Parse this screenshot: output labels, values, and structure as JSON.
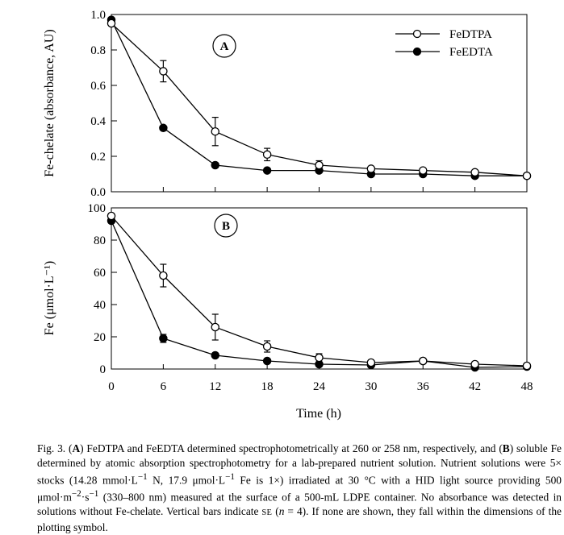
{
  "chart_data": [
    {
      "type": "line",
      "panel": "A",
      "ylabel": "Fe-chelate (absorbance, AU)",
      "xlabel": "",
      "ylim": [
        0.0,
        1.0
      ],
      "yticks": [
        0.0,
        0.2,
        0.4,
        0.6,
        0.8,
        1.0
      ],
      "ytick_labels": [
        "0.0",
        "0.2",
        "0.4",
        "0.6",
        "0.8",
        "1.0"
      ],
      "xlim": [
        0,
        48
      ],
      "x": [
        0,
        6,
        12,
        18,
        24,
        30,
        36,
        42,
        48
      ],
      "legend": {
        "position": "top-right",
        "entries": [
          "FeDTPA",
          "FeEDTA"
        ]
      },
      "series": [
        {
          "name": "FeDTPA",
          "marker": "open-circle",
          "values": [
            0.95,
            0.68,
            0.34,
            0.21,
            0.15,
            0.13,
            0.12,
            0.11,
            0.09
          ],
          "errors": [
            0.0,
            0.06,
            0.08,
            0.035,
            0.025,
            0.0,
            0.0,
            0.0,
            0.0
          ]
        },
        {
          "name": "FeEDTA",
          "marker": "filled-circle",
          "values": [
            0.97,
            0.36,
            0.15,
            0.12,
            0.12,
            0.1,
            0.1,
            0.09,
            0.09
          ],
          "errors": [
            0,
            0,
            0,
            0,
            0,
            0,
            0,
            0,
            0
          ]
        }
      ]
    },
    {
      "type": "line",
      "panel": "B",
      "ylabel": "Fe (μmol·L⁻¹)",
      "xlabel": "Time (h)",
      "ylim": [
        0,
        100
      ],
      "yticks": [
        0,
        20,
        40,
        60,
        80,
        100
      ],
      "ytick_labels": [
        "0",
        "20",
        "40",
        "60",
        "80",
        "100"
      ],
      "xlim": [
        0,
        48
      ],
      "x": [
        0,
        6,
        12,
        18,
        24,
        30,
        36,
        42,
        48
      ],
      "xtick_labels": [
        "0",
        "6",
        "12",
        "18",
        "24",
        "30",
        "36",
        "42",
        "48"
      ],
      "series": [
        {
          "name": "FeDTPA",
          "marker": "open-circle",
          "values": [
            95,
            58,
            26,
            14,
            7,
            4,
            5,
            3,
            2
          ],
          "errors": [
            0,
            7,
            8,
            3.5,
            2.5,
            0,
            0,
            0,
            0
          ]
        },
        {
          "name": "FeEDTA",
          "marker": "filled-circle",
          "values": [
            92,
            19,
            8.5,
            5,
            3,
            2.5,
            5,
            1,
            1.5
          ],
          "errors": [
            0,
            2.5,
            0,
            0,
            0,
            0,
            0,
            0,
            0
          ]
        }
      ]
    }
  ],
  "caption": {
    "fig": "Fig. 3.",
    "a_open": "(",
    "a_letter": "A",
    "a_close": ")",
    "t1": " FeDTPA and FeEDTA determined spectrophotometrically at 260 or 258 nm, respectively, and ",
    "b_open": "(",
    "b_letter": "B",
    "b_close": ")",
    "t2": " soluble Fe determined by atomic absorption spectrophotometry for a lab-prepared nutrient solution. Nutrient solutions were 5× stocks (14.28 mmol·L",
    "sup1": "−1",
    "t3": " N, 17.9 μmol·L",
    "sup2": "−1",
    "t4": " Fe is 1×) irradiated at 30 °C with a HID light source providing 500 μmol·m",
    "sup3": "−2",
    "t5": "·s",
    "sup4": "−1",
    "t6": " (330–800 nm) measured at the surface of a 500-mL LDPE container. No absorbance was detected in solutions without Fe-chelate. Vertical bars indicate ",
    "se": "SE",
    "t7": " (",
    "n": "n",
    "t8": " = 4). If none are shown, they fall within the dimensions of the plotting symbol."
  }
}
